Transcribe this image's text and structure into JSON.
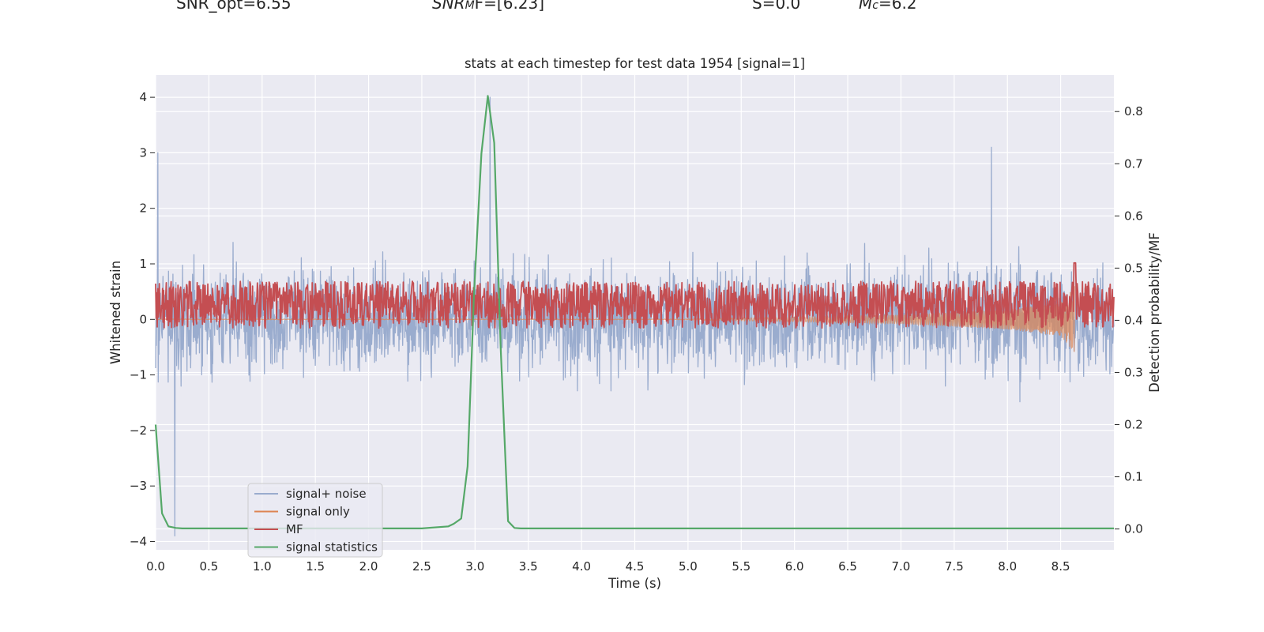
{
  "header": {
    "snr_opt": "SNR_opt=6.55",
    "snr_mf_symbol": "SNR",
    "snr_mf_sub": "M",
    "snr_mf_rest": "F=[6.23]",
    "s_value": "S=0.0",
    "mc_symbol": "M",
    "mc_sub": "c",
    "mc_rest": "=6.2"
  },
  "colors": {
    "plot_bg": "#eaeaf2",
    "grid": "#ffffff",
    "noise": "#9aacce",
    "signal": "#dd8452",
    "mf": "#c44e52",
    "stat": "#55a868"
  },
  "chart_data": {
    "type": "line",
    "title": "stats at each timestep for test data 1954 [signal=1]",
    "xlabel": "Time (s)",
    "ylabel": "Whitened strain",
    "y2label": "Detection probability/MF",
    "xlim": [
      0.0,
      9.0
    ],
    "ylim": [
      -4.15,
      4.4
    ],
    "y2lim": [
      -0.04,
      0.87
    ],
    "x_ticks": [
      "0.0",
      "0.5",
      "1.0",
      "1.5",
      "2.0",
      "2.5",
      "3.0",
      "3.5",
      "4.0",
      "4.5",
      "5.0",
      "5.5",
      "6.0",
      "6.5",
      "7.0",
      "7.5",
      "8.0",
      "8.5"
    ],
    "y_ticks": [
      "4",
      "3",
      "2",
      "1",
      "0",
      "−1",
      "−2",
      "−3",
      "−4"
    ],
    "y2_ticks": [
      "0.8",
      "0.7",
      "0.6",
      "0.5",
      "0.4",
      "0.3",
      "0.2",
      "0.1",
      "0.0"
    ],
    "legend": {
      "position": "lower-left",
      "entries": [
        "signal+ noise",
        "signal only",
        "MF",
        "signal statistics"
      ]
    },
    "series": [
      {
        "name": "signal statistics",
        "axis": "right",
        "x": [
          0.0,
          0.06,
          0.12,
          0.19,
          0.25,
          0.5,
          1.0,
          1.5,
          2.0,
          2.5,
          2.75,
          2.8,
          2.87,
          2.93,
          2.99,
          3.06,
          3.12,
          3.18,
          3.24,
          3.31,
          3.37,
          3.43,
          3.6,
          4.0,
          5.0,
          6.0,
          7.0,
          8.0,
          9.0
        ],
        "y": [
          0.2,
          0.03,
          0.005,
          0.002,
          0.001,
          0.001,
          0.001,
          0.001,
          0.001,
          0.001,
          0.005,
          0.01,
          0.02,
          0.12,
          0.45,
          0.72,
          0.83,
          0.74,
          0.35,
          0.015,
          0.002,
          0.001,
          0.001,
          0.001,
          0.001,
          0.001,
          0.001,
          0.001,
          0.001
        ]
      },
      {
        "name": "MF",
        "axis": "right",
        "baseline": 0.43,
        "spread": 0.045,
        "spikes": [
          {
            "x": 8.63,
            "y": 0.51
          }
        ]
      },
      {
        "name": "signal only",
        "axis": "left",
        "envelope_x": [
          5.0,
          6.0,
          7.0,
          8.0,
          8.5,
          8.63
        ],
        "envelope_y": [
          0.01,
          0.04,
          0.08,
          0.18,
          0.3,
          0.6
        ]
      },
      {
        "name": "signal+ noise",
        "axis": "left",
        "typical_band": [
          -1.8,
          2.0
        ],
        "extremes": [
          {
            "x": 3.14,
            "y": 4.0
          },
          {
            "x": 7.85,
            "y": 3.1
          },
          {
            "x": 0.02,
            "y": 3.0
          },
          {
            "x": 0.18,
            "y": -3.9
          }
        ]
      }
    ]
  }
}
